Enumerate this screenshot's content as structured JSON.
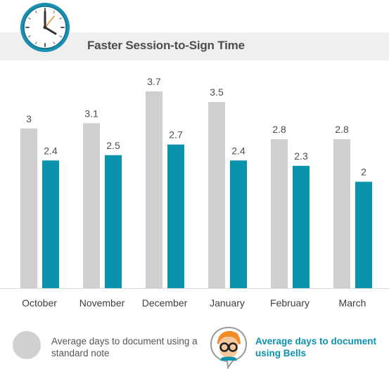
{
  "header": {
    "title": "Faster Session-to-Sign Time",
    "icon": "clock-icon"
  },
  "chart_data": {
    "type": "bar",
    "title": "Faster Session-to-Sign Time",
    "categories": [
      "October",
      "November",
      "December",
      "January",
      "February",
      "March"
    ],
    "series": [
      {
        "values": [
          3,
          3.1,
          3.7,
          3.5,
          2.8,
          2.8
        ],
        "color": "#cfcfcf"
      },
      {
        "values": [
          2.4,
          2.5,
          2.7,
          2.4,
          2.3,
          2
        ],
        "color": "#0a93ad"
      }
    ],
    "value_labels": [
      [
        "3",
        "3.1",
        "3.7",
        "3.5",
        "2.8",
        "2.8"
      ],
      [
        "2.4",
        "2.5",
        "2.7",
        "2.4",
        "2.3",
        "2"
      ]
    ],
    "ylim": [
      0,
      4
    ],
    "grid": false,
    "legend_position": "bottom"
  },
  "legend": {
    "standard_label": "Average days to document using a standard note",
    "bells_label": "Average days to document using Bells",
    "standard_icon": "gray-circle-icon",
    "bells_icon": "nurse-avatar-icon"
  }
}
